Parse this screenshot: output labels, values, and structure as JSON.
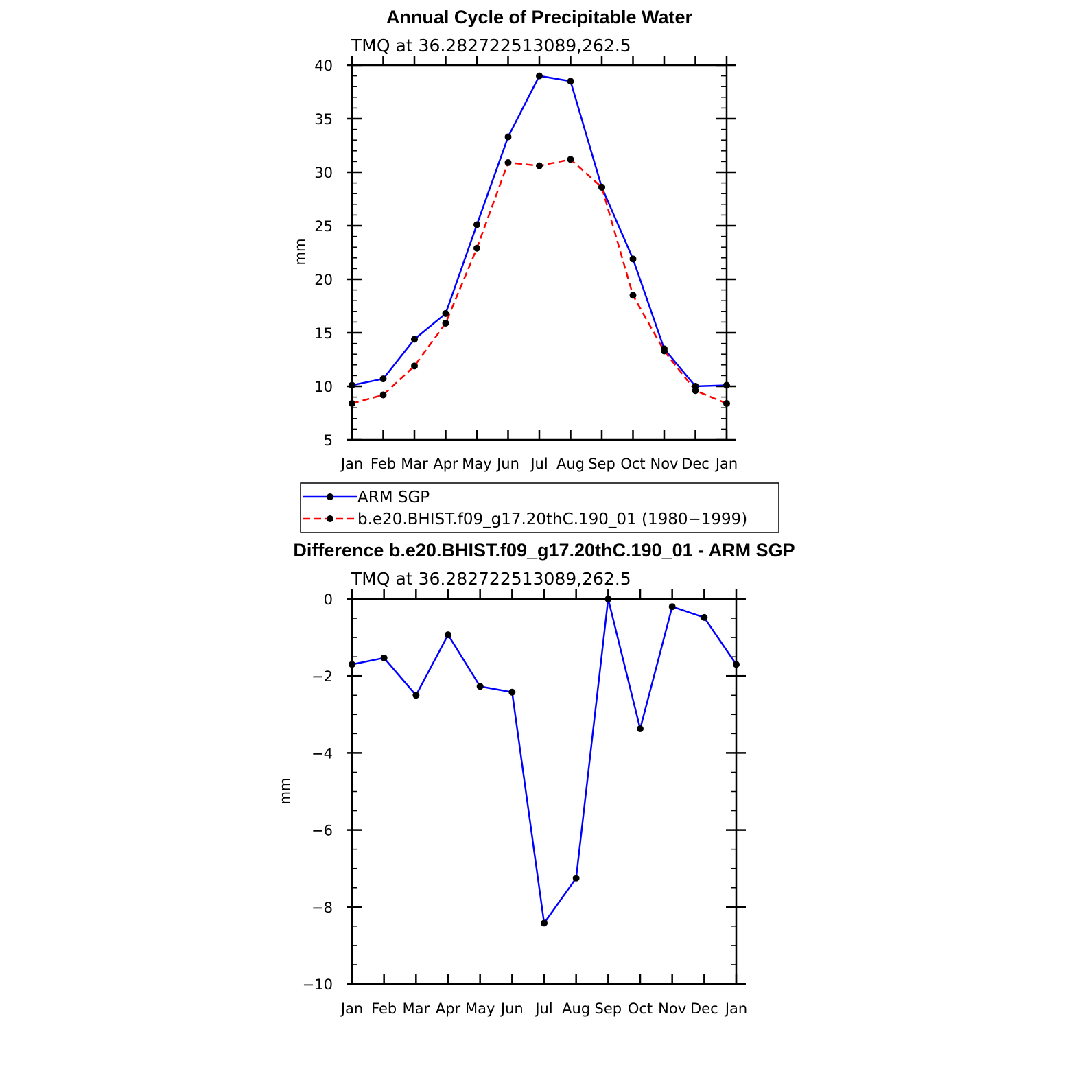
{
  "chart_data": [
    {
      "type": "line",
      "title": "Annual Cycle of Precipitable Water",
      "subtitle": "TMQ at 36.282722513089,262.5",
      "ylabel": "mm",
      "xlabel": "",
      "categories": [
        "Jan",
        "Feb",
        "Mar",
        "Apr",
        "May",
        "Jun",
        "Jul",
        "Aug",
        "Sep",
        "Oct",
        "Nov",
        "Dec",
        "Jan"
      ],
      "ylim": [
        5,
        40
      ],
      "yticks": [
        "5",
        "10",
        "15",
        "20",
        "25",
        "30",
        "35",
        "40"
      ],
      "series": [
        {
          "name": "ARM SGP",
          "color": "#0000ff",
          "style": "solid",
          "values": [
            10.1,
            10.7,
            14.4,
            16.8,
            25.1,
            33.3,
            39.0,
            38.5,
            28.6,
            21.9,
            13.5,
            10.0,
            10.1
          ]
        },
        {
          "name": "b.e20.BHIST.f09_g17.20thC.190_01 (1980−1999)",
          "color": "#ff0000",
          "style": "dashed",
          "values": [
            8.4,
            9.2,
            11.9,
            15.9,
            22.9,
            30.9,
            30.6,
            31.2,
            28.6,
            18.5,
            13.3,
            9.6,
            8.4
          ]
        }
      ],
      "legend": "below"
    },
    {
      "type": "line",
      "title": "Difference b.e20.BHIST.f09_g17.20thC.190_01 - ARM SGP",
      "subtitle": "TMQ at 36.282722513089,262.5",
      "ylabel": "mm",
      "xlabel": "",
      "categories": [
        "Jan",
        "Feb",
        "Mar",
        "Apr",
        "May",
        "Jun",
        "Jul",
        "Aug",
        "Sep",
        "Oct",
        "Nov",
        "Dec",
        "Jan"
      ],
      "ylim": [
        -10,
        0
      ],
      "yticks": [
        "−10",
        "−8",
        "−6",
        "−4",
        "−2",
        "0"
      ],
      "series": [
        {
          "name": "Difference",
          "color": "#0000ff",
          "style": "solid",
          "values": [
            -1.7,
            -1.53,
            -2.5,
            -0.93,
            -2.27,
            -2.42,
            -8.42,
            -7.25,
            0.0,
            -3.37,
            -0.2,
            -0.48,
            -1.7
          ]
        }
      ]
    }
  ]
}
